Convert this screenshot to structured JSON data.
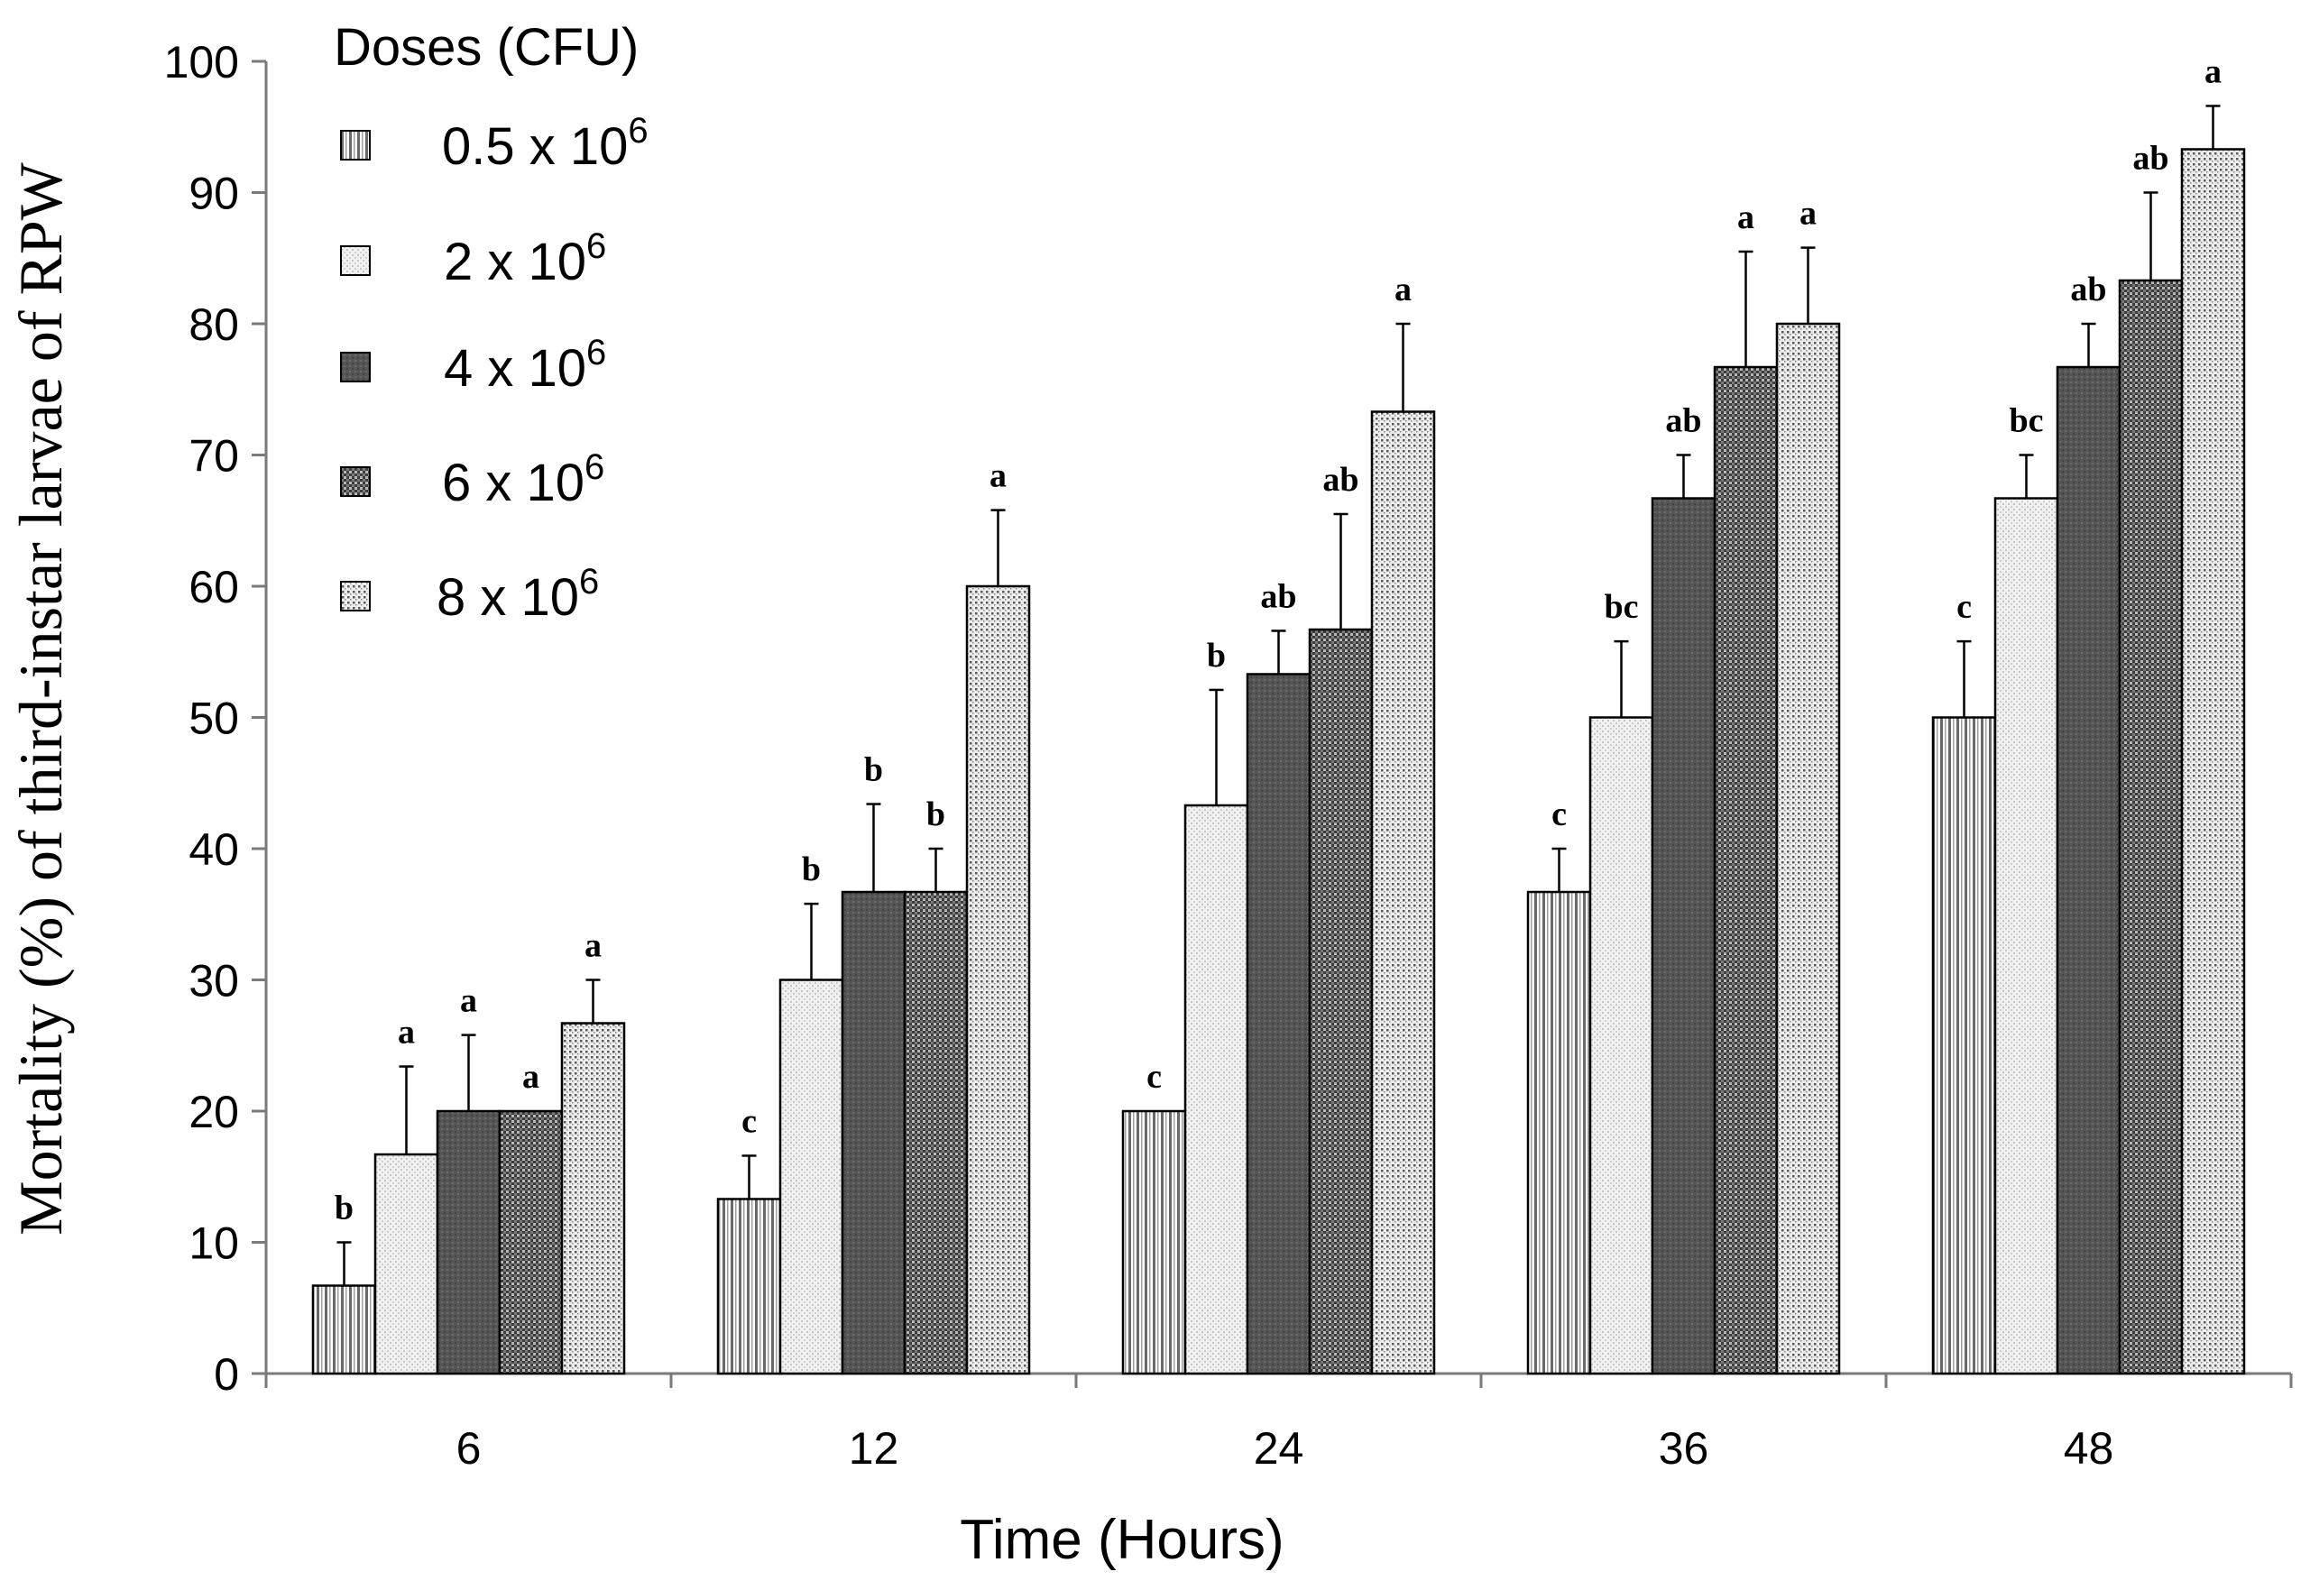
{
  "chart_data": {
    "type": "bar",
    "title": "",
    "xlabel": "Time (Hours)",
    "ylabel": "Mortality (%) of third-instar larvae of RPW",
    "ylim": [
      0,
      100
    ],
    "yticks": [
      "0",
      "10",
      "20",
      "30",
      "40",
      "50",
      "60",
      "70",
      "80",
      "90",
      "100"
    ],
    "categories": [
      "6",
      "12",
      "24",
      "36",
      "48"
    ],
    "legend": {
      "title": "Doses (CFU)",
      "position": "top-left"
    },
    "series": [
      {
        "name": "0.5 x 10",
        "exp": "6",
        "pattern": "vertical-lines",
        "values": [
          6.7,
          13.3,
          20.0,
          36.7,
          50.0
        ],
        "errors": [
          3.3,
          3.3,
          0,
          3.3,
          5.8
        ],
        "letters": [
          "b",
          "c",
          "c",
          "c",
          "c"
        ]
      },
      {
        "name": "2 x 10",
        "exp": "6",
        "pattern": "light-dots",
        "values": [
          16.7,
          30.0,
          43.3,
          50.0,
          66.7
        ],
        "errors": [
          6.7,
          5.8,
          8.8,
          5.8,
          3.3
        ],
        "letters": [
          "a",
          "b",
          "b",
          "bc",
          "bc"
        ]
      },
      {
        "name": "4 x 10",
        "exp": "6",
        "pattern": "dark-fill",
        "values": [
          20.0,
          36.7,
          53.3,
          66.7,
          76.7
        ],
        "errors": [
          5.8,
          6.7,
          3.3,
          3.3,
          3.3
        ],
        "letters": [
          "a",
          "b",
          "ab",
          "ab",
          "ab"
        ]
      },
      {
        "name": "6 x 10",
        "exp": "6",
        "pattern": "checker",
        "values": [
          20.0,
          36.7,
          56.7,
          76.7,
          83.3
        ],
        "errors": [
          0,
          3.3,
          8.8,
          8.8,
          6.7
        ],
        "letters": [
          "a",
          "b",
          "ab",
          "a",
          "ab"
        ]
      },
      {
        "name": "8 x 10",
        "exp": "6",
        "pattern": "dense-dots",
        "values": [
          26.7,
          60.0,
          73.3,
          80.0,
          93.3
        ],
        "errors": [
          3.3,
          5.8,
          6.7,
          5.8,
          3.3
        ],
        "letters": [
          "a",
          "a",
          "a",
          "a",
          "a"
        ]
      }
    ]
  }
}
